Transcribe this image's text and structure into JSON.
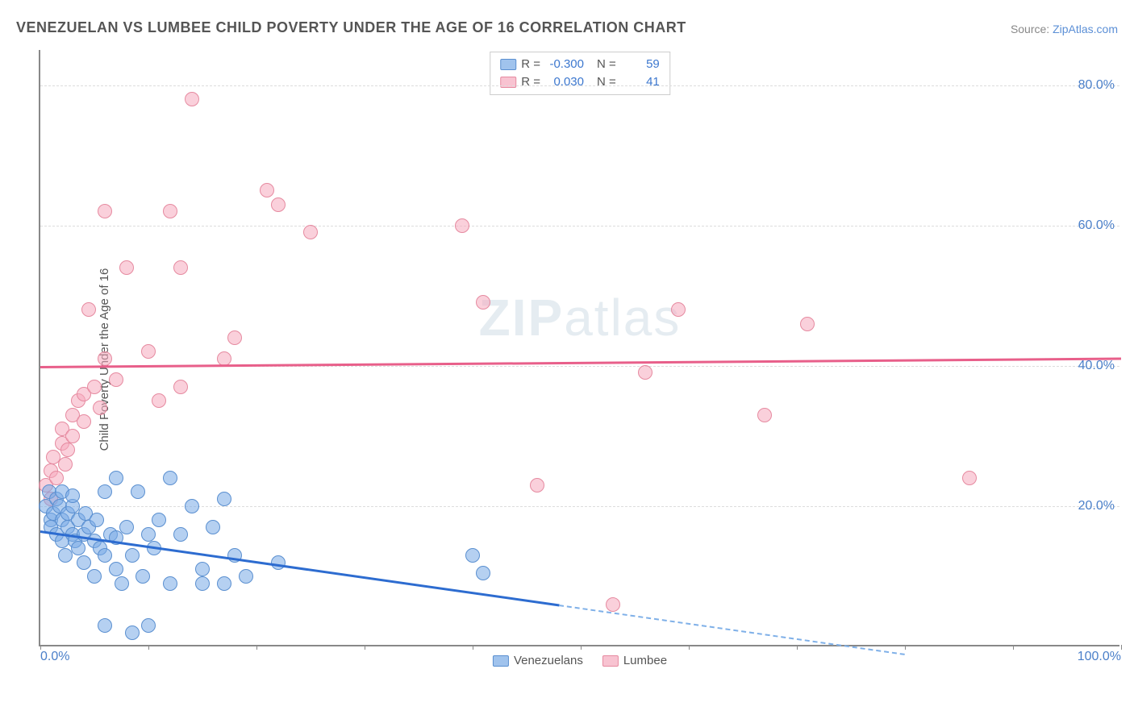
{
  "title": "VENEZUELAN VS LUMBEE CHILD POVERTY UNDER THE AGE OF 16 CORRELATION CHART",
  "source_prefix": "Source: ",
  "source_link": "ZipAtlas.com",
  "y_axis_title": "Child Poverty Under the Age of 16",
  "watermark_bold": "ZIP",
  "watermark_rest": "atlas",
  "chart": {
    "type": "scatter",
    "xlim": [
      0,
      100
    ],
    "ylim": [
      0,
      85
    ],
    "x_ticks": [
      0,
      10,
      20,
      30,
      40,
      50,
      60,
      70,
      80,
      90,
      100
    ],
    "x_tick_labels": {
      "0": "0.0%",
      "100": "100.0%"
    },
    "y_gridlines": [
      20,
      40,
      60,
      80
    ],
    "y_tick_labels": {
      "20": "20.0%",
      "40": "40.0%",
      "60": "60.0%",
      "80": "80.0%"
    },
    "background_color": "#ffffff",
    "grid_color": "#dddddd",
    "axis_color": "#888888",
    "marker_size": 18,
    "series": {
      "venezuelans": {
        "label": "Venezuelans",
        "fill_color": "#78aae6",
        "fill_opacity": 0.55,
        "border_color": "#5a8fd0",
        "trend_color": "#2d6cd0",
        "R": "-0.300",
        "N": "59",
        "trend": {
          "x1": 0,
          "y1": 16.5,
          "x2": 48,
          "y2": 6.0,
          "dash_x2": 80,
          "dash_y2": -1
        },
        "points": [
          [
            0.5,
            20
          ],
          [
            0.8,
            22
          ],
          [
            1,
            18
          ],
          [
            1,
            17
          ],
          [
            1.2,
            19
          ],
          [
            1.5,
            16
          ],
          [
            1.5,
            21
          ],
          [
            1.8,
            20
          ],
          [
            2,
            18
          ],
          [
            2,
            15
          ],
          [
            2,
            22
          ],
          [
            2.3,
            13
          ],
          [
            2.5,
            17
          ],
          [
            2.5,
            19
          ],
          [
            3,
            16
          ],
          [
            3,
            20
          ],
          [
            3,
            21.5
          ],
          [
            3.2,
            15
          ],
          [
            3.5,
            14
          ],
          [
            3.5,
            18
          ],
          [
            4,
            16
          ],
          [
            4,
            12
          ],
          [
            4.2,
            19
          ],
          [
            4.5,
            17
          ],
          [
            5,
            15
          ],
          [
            5,
            10
          ],
          [
            5.2,
            18
          ],
          [
            5.5,
            14
          ],
          [
            6,
            22
          ],
          [
            6,
            13
          ],
          [
            6,
            3
          ],
          [
            6.5,
            16
          ],
          [
            7,
            15.5
          ],
          [
            7,
            11
          ],
          [
            7,
            24
          ],
          [
            7.5,
            9
          ],
          [
            8,
            17
          ],
          [
            8.5,
            13
          ],
          [
            8.5,
            2
          ],
          [
            9,
            22
          ],
          [
            9.5,
            10
          ],
          [
            10,
            16
          ],
          [
            10,
            3
          ],
          [
            10.5,
            14
          ],
          [
            11,
            18
          ],
          [
            12,
            9
          ],
          [
            12,
            24
          ],
          [
            13,
            16
          ],
          [
            14,
            20
          ],
          [
            15,
            9
          ],
          [
            15,
            11
          ],
          [
            16,
            17
          ],
          [
            17,
            9
          ],
          [
            17,
            21
          ],
          [
            18,
            13
          ],
          [
            19,
            10
          ],
          [
            22,
            12
          ],
          [
            40,
            13
          ],
          [
            41,
            10.5
          ]
        ]
      },
      "lumbee": {
        "label": "Lumbee",
        "fill_color": "#f5aabe",
        "fill_opacity": 0.55,
        "border_color": "#e68aa0",
        "trend_color": "#e85f8a",
        "R": "0.030",
        "N": "41",
        "trend": {
          "x1": 0,
          "y1": 40.0,
          "x2": 100,
          "y2": 41.2
        },
        "points": [
          [
            0.5,
            23
          ],
          [
            1,
            21
          ],
          [
            1,
            25
          ],
          [
            1.2,
            27
          ],
          [
            1.5,
            24
          ],
          [
            2,
            29
          ],
          [
            2,
            31
          ],
          [
            2.3,
            26
          ],
          [
            2.5,
            28
          ],
          [
            3,
            30
          ],
          [
            3,
            33
          ],
          [
            3.5,
            35
          ],
          [
            4,
            36
          ],
          [
            4,
            32
          ],
          [
            4.5,
            48
          ],
          [
            5,
            37
          ],
          [
            5.5,
            34
          ],
          [
            6,
            62
          ],
          [
            6,
            41
          ],
          [
            7,
            38
          ],
          [
            8,
            54
          ],
          [
            10,
            42
          ],
          [
            11,
            35
          ],
          [
            12,
            62
          ],
          [
            13,
            54
          ],
          [
            13,
            37
          ],
          [
            14,
            78
          ],
          [
            17,
            41
          ],
          [
            18,
            44
          ],
          [
            21,
            65
          ],
          [
            22,
            63
          ],
          [
            25,
            59
          ],
          [
            39,
            60
          ],
          [
            41,
            49
          ],
          [
            46,
            23
          ],
          [
            53,
            6
          ],
          [
            56,
            39
          ],
          [
            59,
            48
          ],
          [
            67,
            33
          ],
          [
            71,
            46
          ],
          [
            86,
            24
          ]
        ]
      }
    }
  },
  "legend_top": {
    "r_label": "R =",
    "n_label": "N ="
  }
}
